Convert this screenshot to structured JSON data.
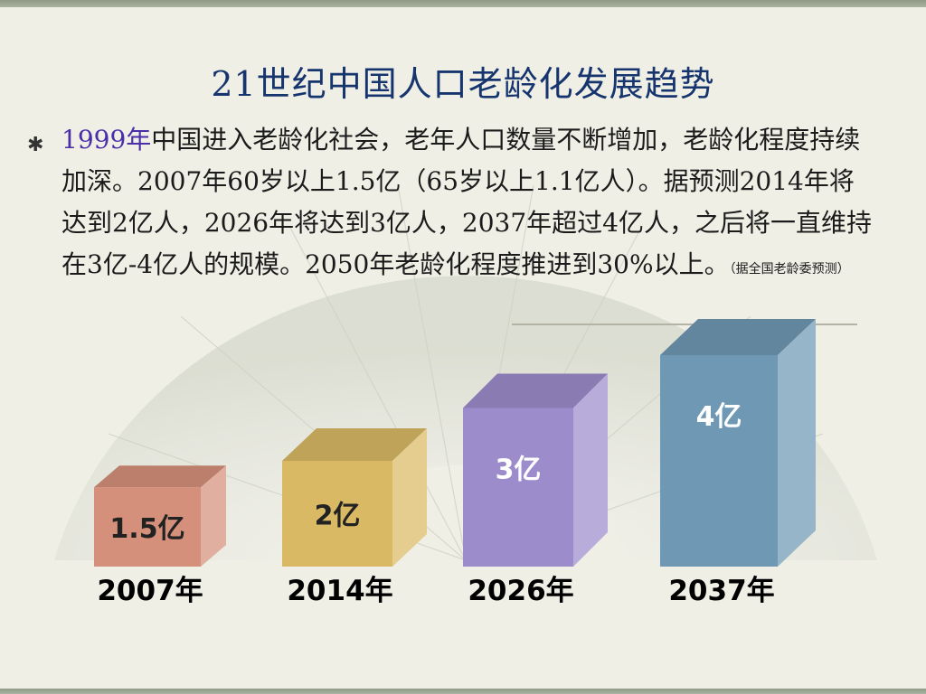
{
  "title": "21世纪中国人口老龄化发展趋势",
  "bullet_symbol": "✱",
  "paragraph": {
    "highlight": "1999年",
    "text": "中国进入老龄化社会，老年人口数量不断增加，老龄化程度持续加深。2007年60岁以上1.5亿（65岁以上1.1亿人）。据预测2014年将达到2亿人，2026年将达到3亿人，2037年超过4亿人，之后将一直维持在3亿-4亿人的规模。2050年老龄化程度推进到30%以上。",
    "source": "（据全国老龄委预测）"
  },
  "chart_data": {
    "type": "bar",
    "categories": [
      "2007年",
      "2014年",
      "2026年",
      "2037年"
    ],
    "values": [
      1.5,
      2,
      3,
      4
    ],
    "value_labels": [
      "1.5亿",
      "2亿",
      "3亿",
      "4亿"
    ],
    "unit": "亿",
    "title": "",
    "xlabel": "",
    "ylabel": "",
    "colors": [
      "#d4907a",
      "#d9b964",
      "#9d8ccb",
      "#6e98b3"
    ],
    "value_label_colors": [
      "#222222",
      "#222222",
      "#ffffff",
      "#ffffff"
    ],
    "grid": false,
    "legend": "none"
  }
}
